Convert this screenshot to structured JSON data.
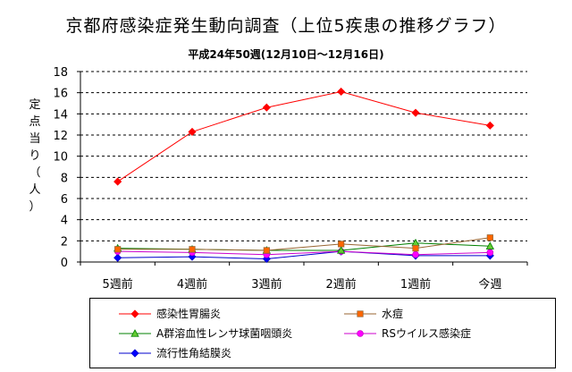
{
  "chart_data": {
    "type": "line",
    "title": "京都府感染症発生動向調査（上位5疾患の推移グラフ）",
    "subtitle": "平成24年50週(12月10日～12月16日)",
    "ylabel": "定点当り（人）",
    "xlabel": "",
    "categories": [
      "5週前",
      "4週前",
      "3週前",
      "2週前",
      "1週前",
      "今週"
    ],
    "ylim": [
      0,
      18
    ],
    "yticks": [
      0,
      2,
      4,
      6,
      8,
      10,
      12,
      14,
      16,
      18
    ],
    "grid": true,
    "legend_position": "bottom",
    "series": [
      {
        "name": "感染性胃腸炎",
        "color": "#ff0000",
        "marker": "diamond",
        "marker_color": "#ff0000",
        "values": [
          7.6,
          12.3,
          14.6,
          16.1,
          14.1,
          12.9
        ]
      },
      {
        "name": "水痘",
        "color": "#996633",
        "marker": "square",
        "marker_color": "#ff6600",
        "values": [
          1.2,
          1.2,
          1.1,
          1.7,
          1.3,
          2.3
        ]
      },
      {
        "name": "A群溶血性レンサ球菌咽頭炎",
        "color": "#008000",
        "marker": "triangle",
        "marker_color": "#66cc33",
        "values": [
          1.3,
          1.2,
          1.1,
          1.1,
          1.8,
          1.5
        ]
      },
      {
        "name": "RSウイルス感染症",
        "color": "#cc00cc",
        "marker": "circle",
        "marker_color": "#ff00ff",
        "values": [
          1.0,
          0.9,
          0.7,
          1.0,
          0.7,
          0.9
        ]
      },
      {
        "name": "流行性角結膜炎",
        "color": "#0000cc",
        "marker": "diamond",
        "marker_color": "#0000ff",
        "values": [
          0.4,
          0.5,
          0.3,
          1.0,
          0.6,
          0.6
        ]
      }
    ]
  }
}
